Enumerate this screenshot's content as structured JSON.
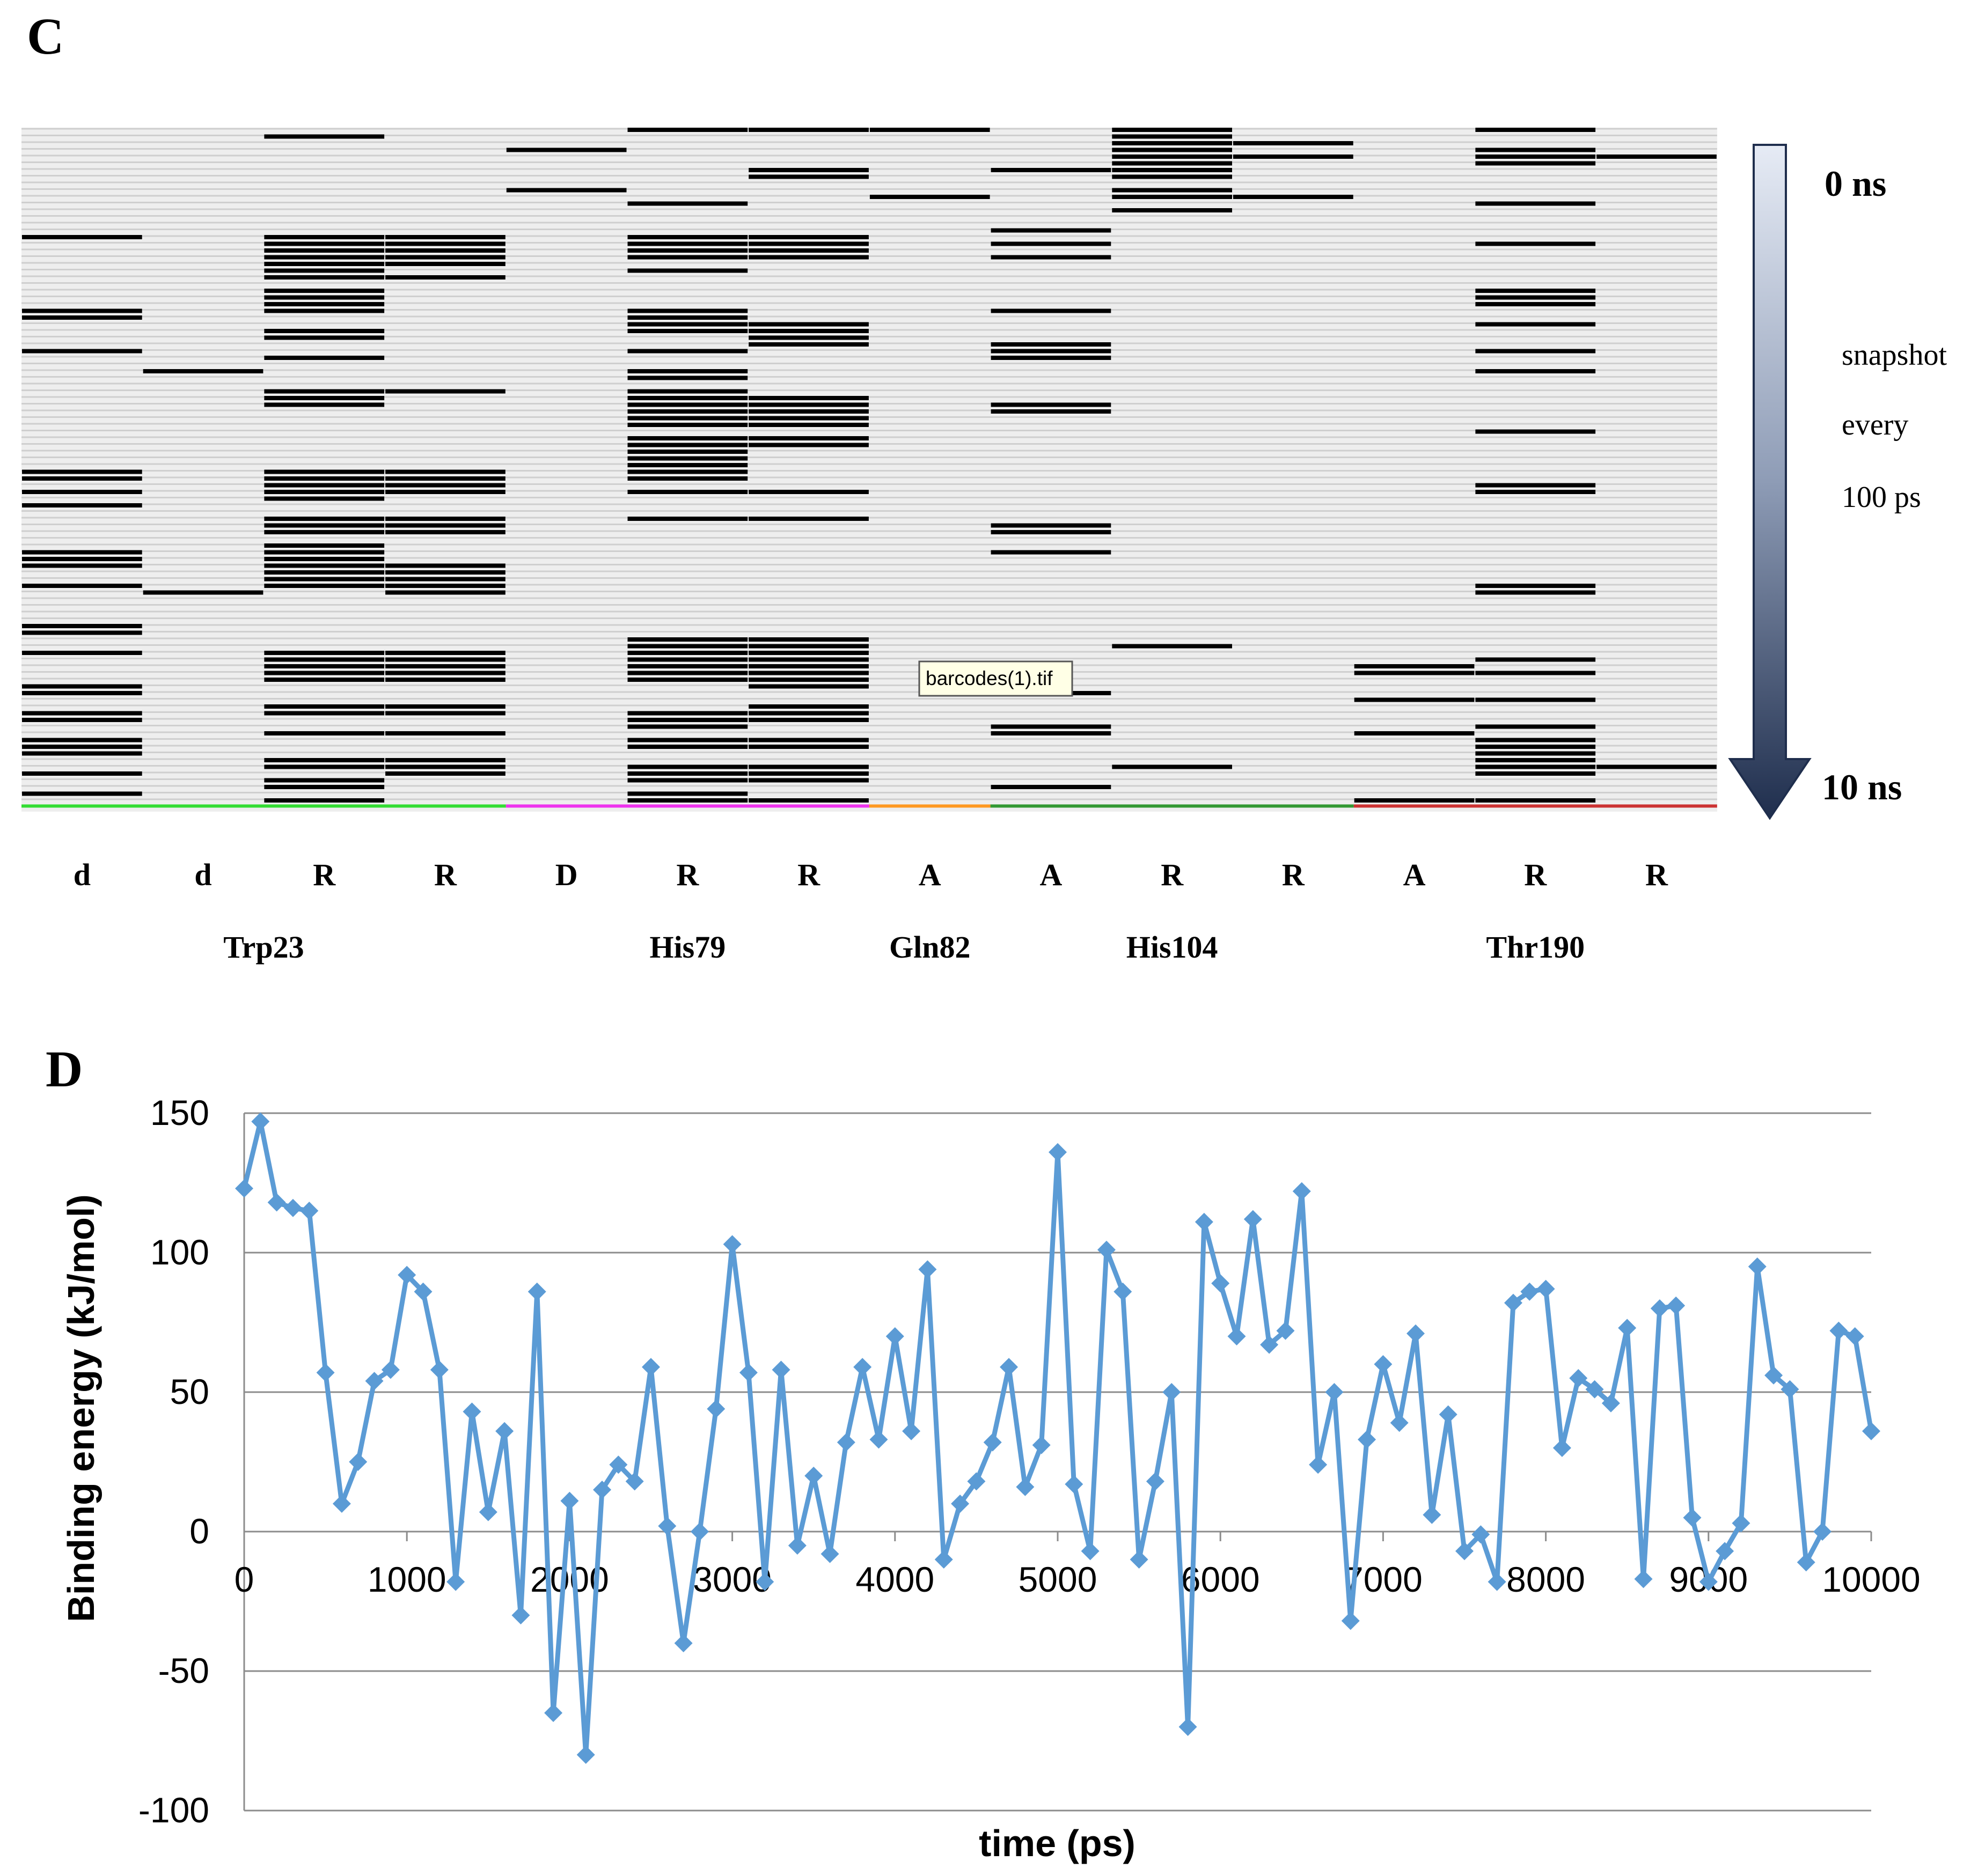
{
  "panel_c": {
    "panel_label": "C",
    "arrow_top_label": "0 ns",
    "arrow_bottom_label": "10 ns",
    "arrow_side_lines": [
      "snapshot",
      "every",
      "100 ps"
    ],
    "tooltip": "barcodes(1).tif",
    "column_labels": [
      "d",
      "d",
      "R",
      "R",
      "D",
      "R",
      "R",
      "A",
      "A",
      "R",
      "R",
      "A",
      "R",
      "R"
    ],
    "residue_labels": [
      "Trp23",
      "His79",
      "Gln82",
      "His104",
      "Thr190"
    ],
    "residue_colors": [
      "#33dd33",
      "#ee33ee",
      "#ff9922",
      "#339933",
      "#cc3333"
    ],
    "residue_columns": [
      [
        0,
        1,
        2,
        3
      ],
      [
        4,
        5,
        6
      ],
      [
        7
      ],
      [
        8,
        9,
        10
      ],
      [
        11,
        12,
        13
      ]
    ],
    "snapshot_count": 101,
    "column_active_snapshots": [
      [
        16,
        27,
        28,
        33,
        51,
        52,
        54,
        56,
        63,
        64,
        65,
        68,
        74,
        75,
        78,
        83,
        84,
        87,
        88,
        91,
        92,
        93,
        96,
        99
      ],
      [
        36,
        69
      ],
      [
        1,
        16,
        17,
        18,
        19,
        20,
        21,
        22,
        24,
        25,
        26,
        27,
        30,
        31,
        34,
        39,
        40,
        41,
        51,
        52,
        53,
        54,
        55,
        58,
        59,
        60,
        62,
        63,
        64,
        65,
        66,
        67,
        68,
        78,
        79,
        80,
        81,
        82,
        86,
        87,
        90,
        94,
        95,
        97,
        98,
        100
      ],
      [
        16,
        17,
        18,
        19,
        20,
        22,
        39,
        51,
        52,
        53,
        54,
        58,
        59,
        60,
        65,
        66,
        67,
        68,
        69,
        78,
        79,
        80,
        81,
        82,
        86,
        87,
        90,
        94,
        95,
        96
      ],
      [
        3,
        9
      ],
      [
        0,
        11,
        16,
        17,
        18,
        19,
        21,
        27,
        28,
        29,
        30,
        33,
        36,
        37,
        39,
        40,
        41,
        42,
        43,
        44,
        46,
        47,
        48,
        49,
        50,
        51,
        52,
        54,
        58,
        76,
        77,
        78,
        79,
        80,
        81,
        82,
        87,
        88,
        89,
        91,
        92,
        95,
        96,
        97,
        99,
        100
      ],
      [
        0,
        6,
        7,
        16,
        17,
        18,
        19,
        29,
        30,
        31,
        32,
        40,
        41,
        42,
        43,
        44,
        46,
        47,
        54,
        58,
        76,
        77,
        78,
        79,
        80,
        81,
        82,
        83,
        86,
        87,
        88,
        91,
        92,
        95,
        96,
        97,
        100
      ],
      [
        0,
        10
      ],
      [
        6,
        15,
        17,
        19,
        27,
        32,
        33,
        34,
        41,
        42,
        59,
        60,
        63,
        84,
        89,
        90,
        98
      ],
      [
        0,
        1,
        2,
        3,
        4,
        5,
        6,
        7,
        9,
        10,
        12,
        77,
        95
      ],
      [
        2,
        4,
        10
      ],
      [
        80,
        81,
        85,
        90,
        100
      ],
      [
        0,
        3,
        4,
        5,
        11,
        17,
        24,
        25,
        26,
        29,
        33,
        36,
        45,
        53,
        54,
        68,
        69,
        79,
        81,
        85,
        89,
        91,
        92,
        93,
        94,
        95,
        96,
        100
      ],
      [
        4,
        95
      ]
    ]
  },
  "panel_d": {
    "panel_label": "D",
    "chart_data": {
      "type": "line",
      "title": "",
      "xlabel": "time (ps)",
      "ylabel": "Binding energy (kJ/mol)",
      "xlim": [
        0,
        10000
      ],
      "ylim": [
        -100,
        150
      ],
      "xticks": [
        0,
        1000,
        2000,
        3000,
        4000,
        5000,
        6000,
        7000,
        8000,
        9000,
        10000
      ],
      "yticks": [
        -100,
        -50,
        0,
        50,
        100,
        150
      ],
      "grid": "horizontal",
      "line_color": "#5b9bd5",
      "marker": "diamond",
      "x": [
        0,
        100,
        200,
        300,
        400,
        500,
        600,
        700,
        800,
        900,
        1000,
        1100,
        1200,
        1300,
        1400,
        1500,
        1600,
        1700,
        1800,
        1900,
        2000,
        2100,
        2200,
        2300,
        2400,
        2500,
        2600,
        2700,
        2800,
        2900,
        3000,
        3100,
        3200,
        3300,
        3400,
        3500,
        3600,
        3700,
        3800,
        3900,
        4000,
        4100,
        4200,
        4300,
        4400,
        4500,
        4600,
        4700,
        4800,
        4900,
        5000,
        5100,
        5200,
        5300,
        5400,
        5500,
        5600,
        5700,
        5800,
        5900,
        6000,
        6100,
        6200,
        6300,
        6400,
        6500,
        6600,
        6700,
        6800,
        6900,
        7000,
        7100,
        7200,
        7300,
        7400,
        7500,
        7600,
        7700,
        7800,
        7900,
        8000,
        8100,
        8200,
        8300,
        8400,
        8500,
        8600,
        8700,
        8800,
        8900,
        9000,
        9100,
        9200,
        9300,
        9400,
        9500,
        9600,
        9700,
        9800,
        9900,
        10000
      ],
      "y": [
        123,
        147,
        118,
        116,
        115,
        57,
        10,
        25,
        54,
        58,
        92,
        86,
        58,
        -18,
        43,
        7,
        36,
        -30,
        86,
        -65,
        11,
        -80,
        15,
        24,
        18,
        59,
        2,
        -40,
        0,
        44,
        103,
        57,
        -18,
        58,
        -5,
        20,
        -8,
        32,
        59,
        33,
        70,
        36,
        94,
        -10,
        10,
        18,
        32,
        59,
        16,
        31,
        136,
        17,
        -7,
        101,
        86,
        -10,
        18,
        50,
        -70,
        111,
        89,
        70,
        112,
        67,
        72,
        122,
        24,
        50,
        -32,
        33,
        60,
        39,
        71,
        6,
        42,
        -7,
        -1,
        -18,
        82,
        86,
        87,
        30,
        55,
        51,
        46,
        73,
        -17,
        80,
        81,
        5,
        -18,
        -7,
        3,
        95,
        56,
        51,
        -11,
        0,
        72,
        70,
        36
      ]
    }
  }
}
